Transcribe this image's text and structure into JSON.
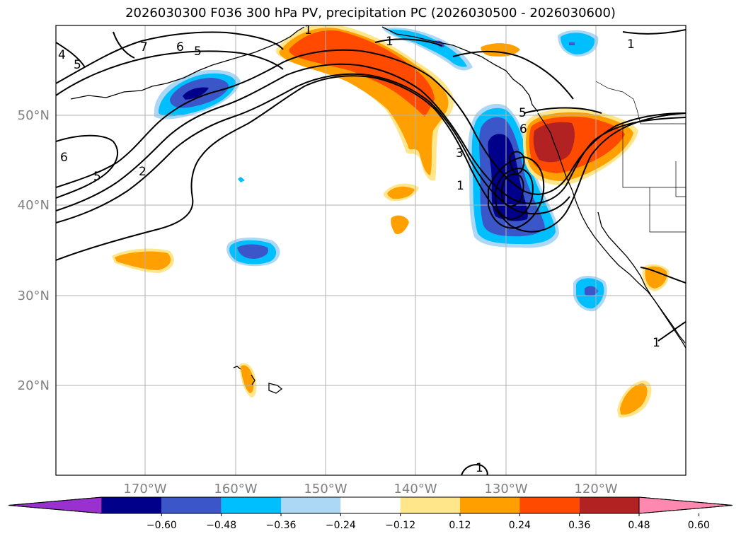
{
  "title": "2026030300 F036 300 hPa PV, precipitation PC (2026030500 - 2026030600)",
  "lat_labels": [
    "20°N",
    "30°N",
    "40°N",
    "50°N"
  ],
  "lon_labels": [
    "170°W",
    "160°W",
    "150°W",
    "140°W",
    "130°W",
    "120°W"
  ],
  "colorbar": {
    "ticks": [
      "−0.60",
      "−0.48",
      "−0.36",
      "−0.24",
      "−0.12",
      "0.12",
      "0.24",
      "0.36",
      "0.48",
      "0.60"
    ],
    "colors": [
      "#9b30d0",
      "#00008b",
      "#3a56c8",
      "#00bfff",
      "#add8f5",
      "#ffffff",
      "#ffe68a",
      "#ffa000",
      "#ff4a00",
      "#b22222",
      "#ff88b0"
    ]
  },
  "contour_labels": [
    "7",
    "6",
    "5",
    "4",
    "5",
    "6",
    "5",
    "2",
    "3",
    "1",
    "5",
    "6",
    "1",
    "1",
    "1",
    "1",
    "1"
  ]
}
